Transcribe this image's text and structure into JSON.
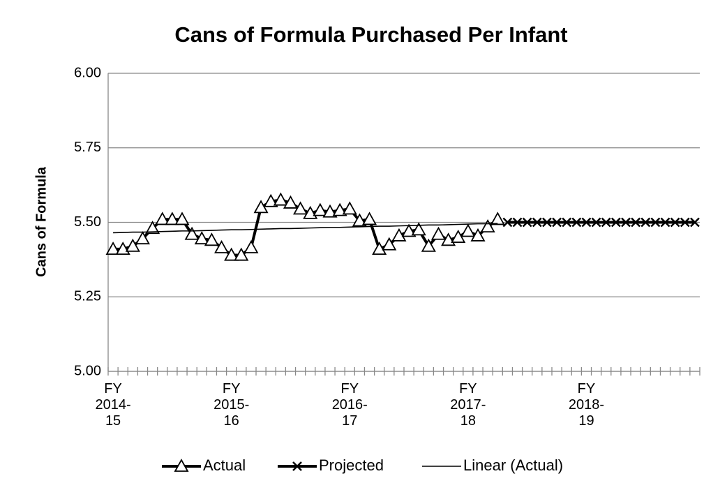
{
  "chart_data": {
    "type": "line",
    "title": "Cans of Formula Purchased Per Infant",
    "y_label": "Cans of Formula",
    "categories": [
      "FY\n2014-\n15",
      null,
      null,
      null,
      null,
      null,
      null,
      null,
      null,
      null,
      null,
      null,
      "FY\n2015-\n16",
      null,
      null,
      null,
      null,
      null,
      null,
      null,
      null,
      null,
      null,
      null,
      "FY\n2016-\n17",
      null,
      null,
      null,
      null,
      null,
      null,
      null,
      null,
      null,
      null,
      null,
      "FY\n2017-\n18",
      null,
      null,
      null,
      null,
      null,
      null,
      null,
      null,
      null,
      null,
      null,
      "FY\n2018-\n19",
      null,
      null,
      null,
      null,
      null,
      null,
      null,
      null,
      null,
      null,
      null
    ],
    "series": [
      {
        "name": "Actual",
        "color": "#000000",
        "marker": "triangle",
        "values": [
          5.41,
          5.41,
          5.42,
          5.445,
          5.48,
          5.51,
          5.51,
          5.51,
          5.46,
          5.445,
          5.44,
          5.415,
          5.39,
          5.39,
          5.415,
          5.55,
          5.57,
          5.575,
          5.565,
          5.545,
          5.53,
          5.54,
          5.535,
          5.54,
          5.545,
          5.505,
          5.51,
          5.41,
          5.425,
          5.455,
          5.47,
          5.475,
          5.42,
          5.46,
          5.44,
          5.45,
          5.47,
          5.455,
          5.485,
          5.51,
          null,
          null,
          null,
          null,
          null,
          null,
          null,
          null,
          null,
          null,
          null,
          null,
          null,
          null,
          null,
          null,
          null,
          null,
          null,
          null
        ]
      },
      {
        "name": "Projected",
        "color": "#000000",
        "marker": "x",
        "values": [
          null,
          null,
          null,
          null,
          null,
          null,
          null,
          null,
          null,
          null,
          null,
          null,
          null,
          null,
          null,
          null,
          null,
          null,
          null,
          null,
          null,
          null,
          null,
          null,
          null,
          null,
          null,
          null,
          null,
          null,
          null,
          null,
          null,
          null,
          null,
          null,
          null,
          null,
          null,
          null,
          5.5,
          5.5,
          5.5,
          5.5,
          5.5,
          5.5,
          5.5,
          5.5,
          5.5,
          5.5,
          5.5,
          5.5,
          5.5,
          5.5,
          5.5,
          5.5,
          5.5,
          5.5,
          5.5,
          5.5
        ]
      },
      {
        "name": "Linear (Actual)",
        "color": "#000000",
        "marker": "none",
        "values": [
          5.465,
          5.466,
          5.467,
          5.467,
          5.468,
          5.469,
          5.47,
          5.471,
          5.471,
          5.472,
          5.473,
          5.474,
          5.475,
          5.475,
          5.476,
          5.477,
          5.478,
          5.479,
          5.479,
          5.48,
          5.481,
          5.482,
          5.483,
          5.483,
          5.484,
          5.485,
          5.486,
          5.487,
          5.487,
          5.488,
          5.489,
          5.49,
          5.491,
          5.491,
          5.492,
          5.493,
          5.494,
          5.495,
          5.495,
          5.496,
          null,
          null,
          null,
          null,
          null,
          null,
          null,
          null,
          null,
          null,
          null,
          null,
          null,
          null,
          null,
          null,
          null,
          null,
          null,
          null
        ]
      }
    ],
    "ylim": [
      5,
      6
    ],
    "yticks": [
      {
        "value": 5,
        "label": "5.00"
      },
      {
        "value": 5.25,
        "label": "5.25"
      },
      {
        "value": 5.5,
        "label": "5.50"
      },
      {
        "value": 5.75,
        "label": "5.75"
      },
      {
        "value": 6,
        "label": "6.00"
      }
    ],
    "grid": true,
    "legend": "bottom"
  }
}
